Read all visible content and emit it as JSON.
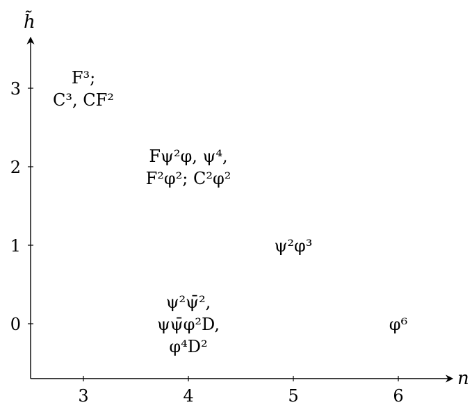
{
  "chart_data": {
    "type": "scatter",
    "title": "",
    "xlabel": "n",
    "ylabel": "h̃",
    "xlim": [
      2.5,
      6.5
    ],
    "ylim": [
      -0.7,
      3.6
    ],
    "x_ticks": [
      "3",
      "4",
      "5",
      "6"
    ],
    "y_ticks": [
      "0",
      "1",
      "2",
      "3"
    ],
    "grid": false,
    "points": [
      {
        "x": 3,
        "y": 3,
        "label_lines": [
          "F³;",
          "C³, CF²"
        ]
      },
      {
        "x": 4,
        "y": 2,
        "label_lines": [
          "Fψ²φ, ψ⁴,",
          "F²φ²; C²φ²"
        ]
      },
      {
        "x": 5,
        "y": 1,
        "label_lines": [
          "ψ²φ³"
        ]
      },
      {
        "x": 4,
        "y": 0,
        "label_lines": [
          "ψ²ψ̄²,",
          "ψψ̄φ²D,",
          "φ⁴D²"
        ]
      },
      {
        "x": 6,
        "y": 0,
        "label_lines": [
          "φ⁶"
        ]
      }
    ]
  }
}
